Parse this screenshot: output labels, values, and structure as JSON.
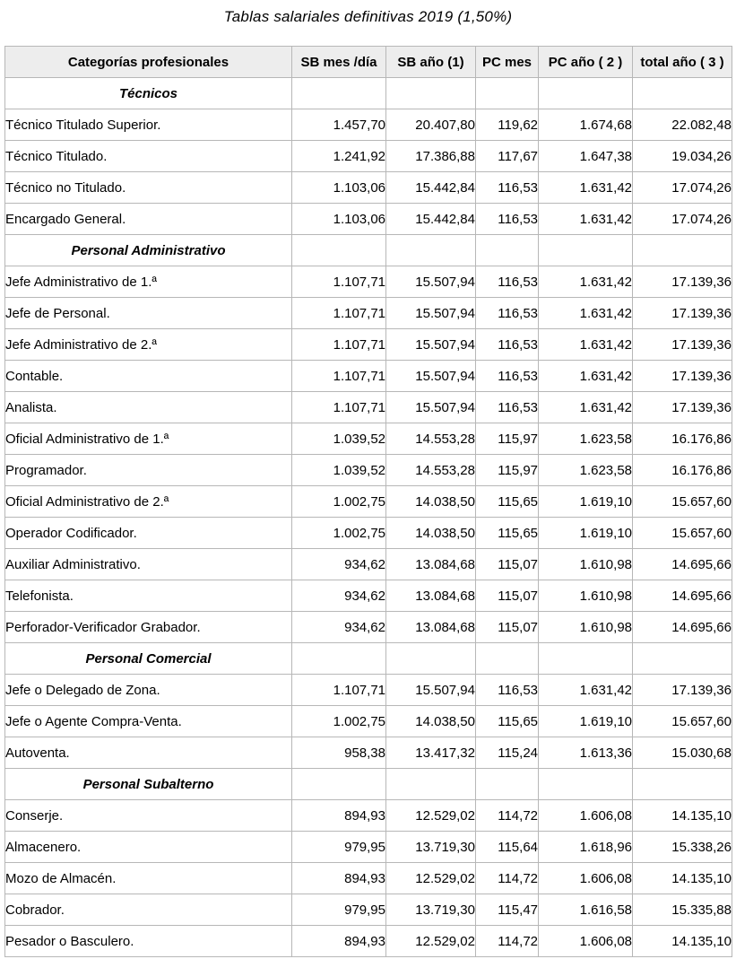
{
  "title": "Tablas salariales definitivas 2019 (1,50%)",
  "table": {
    "headers": [
      "Categorías profesionales",
      "SB mes /día",
      "SB año (1)",
      "PC mes",
      "PC año ( 2 )",
      "total año ( 3 )"
    ],
    "rows": [
      {
        "type": "section",
        "label": "Técnicos"
      },
      {
        "type": "data",
        "label": "Técnico Titulado Superior.",
        "values": [
          "1.457,70",
          "20.407,80",
          "119,62",
          "1.674,68",
          "22.082,48"
        ]
      },
      {
        "type": "data",
        "label": "Técnico Titulado.",
        "values": [
          "1.241,92",
          "17.386,88",
          "117,67",
          "1.647,38",
          "19.034,26"
        ]
      },
      {
        "type": "data",
        "label": "Técnico no Titulado.",
        "values": [
          "1.103,06",
          "15.442,84",
          "116,53",
          "1.631,42",
          "17.074,26"
        ]
      },
      {
        "type": "data",
        "label": "Encargado General.",
        "values": [
          "1.103,06",
          "15.442,84",
          "116,53",
          "1.631,42",
          "17.074,26"
        ]
      },
      {
        "type": "section",
        "label": "Personal Administrativo"
      },
      {
        "type": "data",
        "label": "Jefe Administrativo de 1.ª",
        "values": [
          "1.107,71",
          "15.507,94",
          "116,53",
          "1.631,42",
          "17.139,36"
        ]
      },
      {
        "type": "data",
        "label": "Jefe de Personal.",
        "values": [
          "1.107,71",
          "15.507,94",
          "116,53",
          "1.631,42",
          "17.139,36"
        ]
      },
      {
        "type": "data",
        "label": "Jefe Administrativo de 2.ª",
        "values": [
          "1.107,71",
          "15.507,94",
          "116,53",
          "1.631,42",
          "17.139,36"
        ]
      },
      {
        "type": "data",
        "label": "Contable.",
        "values": [
          "1.107,71",
          "15.507,94",
          "116,53",
          "1.631,42",
          "17.139,36"
        ]
      },
      {
        "type": "data",
        "label": "Analista.",
        "values": [
          "1.107,71",
          "15.507,94",
          "116,53",
          "1.631,42",
          "17.139,36"
        ]
      },
      {
        "type": "data",
        "label": "Oficial Administrativo de 1.ª",
        "values": [
          "1.039,52",
          "14.553,28",
          "115,97",
          "1.623,58",
          "16.176,86"
        ]
      },
      {
        "type": "data",
        "label": "Programador.",
        "values": [
          "1.039,52",
          "14.553,28",
          "115,97",
          "1.623,58",
          "16.176,86"
        ]
      },
      {
        "type": "data",
        "label": "Oficial Administrativo de 2.ª",
        "values": [
          "1.002,75",
          "14.038,50",
          "115,65",
          "1.619,10",
          "15.657,60"
        ]
      },
      {
        "type": "data",
        "label": "Operador Codificador.",
        "values": [
          "1.002,75",
          "14.038,50",
          "115,65",
          "1.619,10",
          "15.657,60"
        ]
      },
      {
        "type": "data",
        "label": "Auxiliar Administrativo.",
        "values": [
          "934,62",
          "13.084,68",
          "115,07",
          "1.610,98",
          "14.695,66"
        ]
      },
      {
        "type": "data",
        "label": "Telefonista.",
        "values": [
          "934,62",
          "13.084,68",
          "115,07",
          "1.610,98",
          "14.695,66"
        ]
      },
      {
        "type": "data",
        "label": "Perforador-Verificador Grabador.",
        "values": [
          "934,62",
          "13.084,68",
          "115,07",
          "1.610,98",
          "14.695,66"
        ]
      },
      {
        "type": "section",
        "label": "Personal Comercial"
      },
      {
        "type": "data",
        "label": "Jefe o Delegado de Zona.",
        "values": [
          "1.107,71",
          "15.507,94",
          "116,53",
          "1.631,42",
          "17.139,36"
        ]
      },
      {
        "type": "data",
        "label": "Jefe o Agente Compra-Venta.",
        "values": [
          "1.002,75",
          "14.038,50",
          "115,65",
          "1.619,10",
          "15.657,60"
        ]
      },
      {
        "type": "data",
        "label": "Autoventa.",
        "values": [
          "958,38",
          "13.417,32",
          "115,24",
          "1.613,36",
          "15.030,68"
        ]
      },
      {
        "type": "section",
        "label": "Personal Subalterno"
      },
      {
        "type": "data",
        "label": "Conserje.",
        "values": [
          "894,93",
          "12.529,02",
          "114,72",
          "1.606,08",
          "14.135,10"
        ]
      },
      {
        "type": "data",
        "label": "Almacenero.",
        "values": [
          "979,95",
          "13.719,30",
          "115,64",
          "1.618,96",
          "15.338,26"
        ]
      },
      {
        "type": "data",
        "label": "Mozo de Almacén.",
        "values": [
          "894,93",
          "12.529,02",
          "114,72",
          "1.606,08",
          "14.135,10"
        ]
      },
      {
        "type": "data",
        "label": "Cobrador.",
        "values": [
          "979,95",
          "13.719,30",
          "115,47",
          "1.616,58",
          "15.335,88"
        ]
      },
      {
        "type": "data",
        "label": "Pesador o Basculero.",
        "values": [
          "894,93",
          "12.529,02",
          "114,72",
          "1.606,08",
          "14.135,10"
        ]
      }
    ]
  },
  "colors": {
    "header_background": "#ededed",
    "border": "#b7b7b7",
    "text": "#000000",
    "page_background": "#ffffff"
  }
}
